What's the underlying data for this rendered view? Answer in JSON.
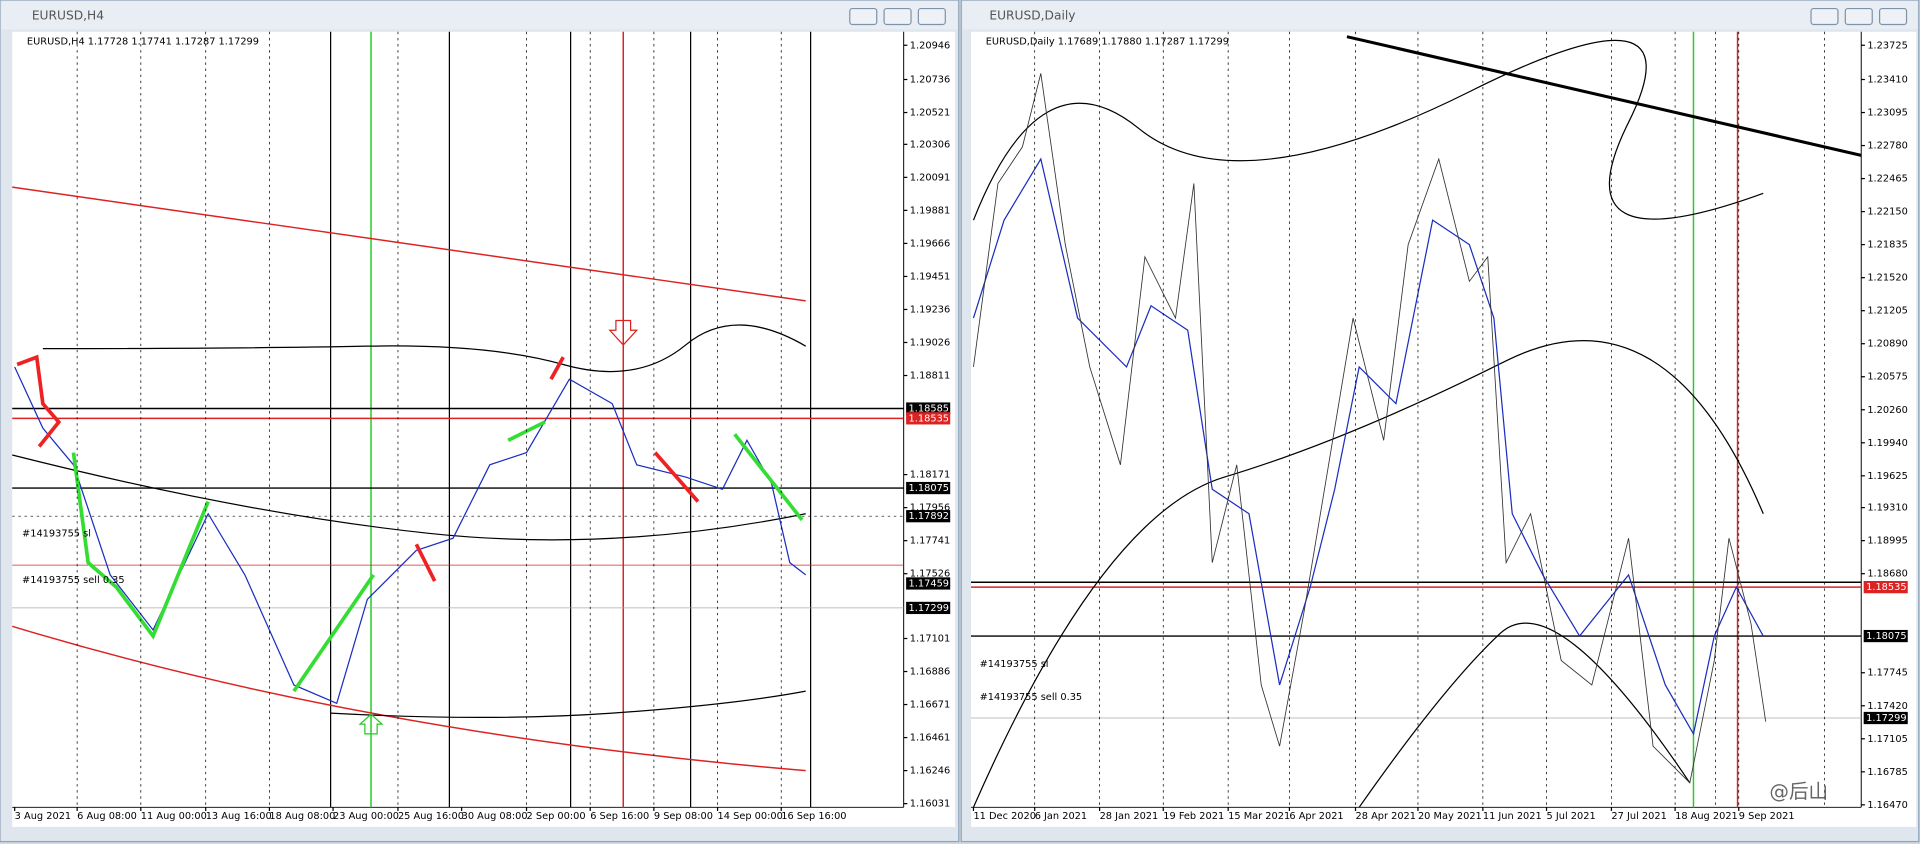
{
  "windows": [
    {
      "title": "EURUSD,H4",
      "info": "EURUSD,H4  1.17728 1.17741 1.17287 1.17299",
      "price_labels": [
        "1.20946",
        "1.20736",
        "1.20521",
        "1.20306",
        "1.20091",
        "1.19881",
        "1.19666",
        "1.19451",
        "1.19236",
        "1.19026",
        "1.18811",
        "1.18171",
        "1.17956",
        "1.17741",
        "1.17526",
        "1.17101",
        "1.16886",
        "1.16671",
        "1.16461",
        "1.16246",
        "1.16031"
      ],
      "marked_prices": [
        "1.18585",
        "1.18535",
        "1.18075",
        "1.17892",
        "1.17459",
        "1.17299"
      ],
      "dates": [
        "3 Aug 2021",
        "6 Aug 08:00",
        "11 Aug 00:00",
        "13 Aug 16:00",
        "18 Aug 08:00",
        "23 Aug 00:00",
        "25 Aug 16:00",
        "30 Aug 08:00",
        "2 Sep 00:00",
        "6 Sep 16:00",
        "9 Sep 08:00",
        "14 Sep 00:00",
        "16 Sep 16:00"
      ],
      "annotations": [
        "#14193755 sl",
        "#14193755 sell 0.35"
      ]
    },
    {
      "title": "EURUSD,Daily",
      "info": "EURUSD,Daily  1.17689 1.17880 1.17287 1.17299",
      "price_labels": [
        "1.23725",
        "1.23410",
        "1.23095",
        "1.22780",
        "1.22465",
        "1.22150",
        "1.21835",
        "1.21520",
        "1.21205",
        "1.20890",
        "1.20575",
        "1.20260",
        "1.19940",
        "1.19625",
        "1.19310",
        "1.18995",
        "1.18680",
        "1.17745",
        "1.17420",
        "1.17105",
        "1.16785",
        "1.16470"
      ],
      "marked_prices": [
        "1.18535",
        "1.18075",
        "1.17299"
      ],
      "dates": [
        "11 Dec 2020",
        "6 Jan 2021",
        "28 Jan 2021",
        "19 Feb 2021",
        "15 Mar 2021",
        "6 Apr 2021",
        "28 Apr 2021",
        "20 May 2021",
        "11 Jun 2021",
        "5 Jul 2021",
        "27 Jul 2021",
        "18 Aug 2021",
        "9 Sep 2021"
      ],
      "annotations": [
        "#14193755 sl",
        "#14193755 sell 0.35"
      ]
    }
  ],
  "watermark": "@后山"
}
